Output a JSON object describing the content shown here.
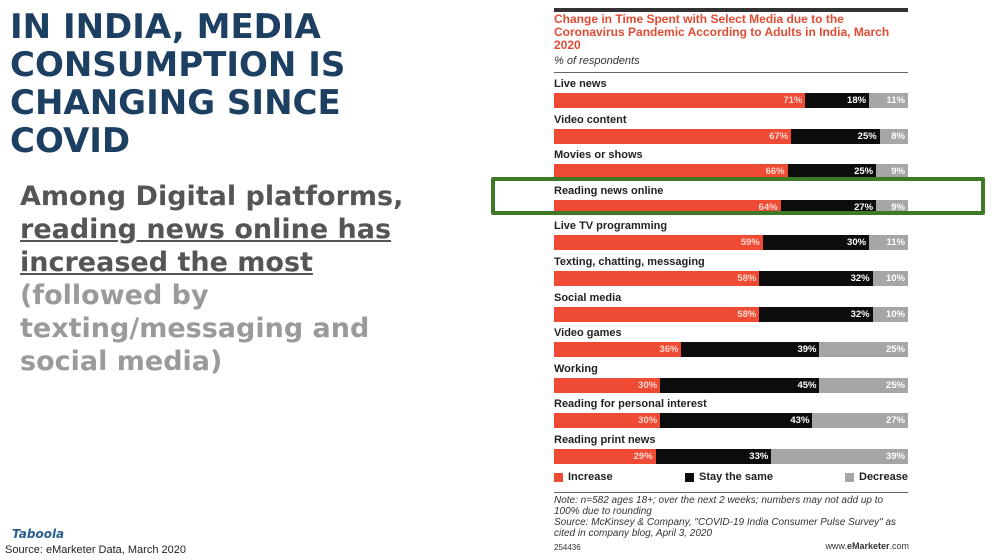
{
  "slide": {
    "headline": "IN INDIA, MEDIA CONSUMPTION IS CHANGING SINCE COVID",
    "sub_part1": "Among Digital platforms, ",
    "sub_highlight": "reading news online has increased the most",
    "sub_part3": "(followed by texting/messaging and social media)",
    "logo": "Taboola",
    "source": "Source: eMarketer Data, March 2020"
  },
  "colors": {
    "increase": "#ef4b34",
    "stay_the_same": "#0d0d0d",
    "decrease": "#a6a6a6",
    "highlight_border": "#3e7a26",
    "headline": "#1c3f62"
  },
  "chart_data": {
    "type": "bar",
    "orientation": "horizontal-stacked-100",
    "title": "Change in Time Spent with Select Media due to the Coronavirus Pandemic According to Adults in India, March 2020",
    "subtitle": "% of respondents",
    "categories": [
      "Live news",
      "Video content",
      "Movies or shows",
      "Reading news online",
      "Live TV programming",
      "Texting, chatting, messaging",
      "Social media",
      "Video games",
      "Working",
      "Reading for personal interest",
      "Reading print news"
    ],
    "series": [
      {
        "name": "Increase",
        "values": [
          71,
          67,
          66,
          64,
          59,
          58,
          58,
          36,
          30,
          30,
          29
        ]
      },
      {
        "name": "Stay the same",
        "values": [
          18,
          25,
          25,
          27,
          30,
          32,
          32,
          39,
          45,
          43,
          33
        ]
      },
      {
        "name": "Decrease",
        "values": [
          11,
          8,
          9,
          9,
          11,
          10,
          10,
          25,
          25,
          27,
          39
        ]
      }
    ],
    "highlighted_category": "Reading news online",
    "legend_position": "bottom",
    "note": "Note: n=582 ages 18+; over the next 2 weeks; numbers may not add up to 100% due to rounding",
    "source": "Source: McKinsey & Company, \"COVID-19 India Consumer Pulse Survey\" as cited in company blog, April 3, 2020",
    "chart_id": "254436",
    "brand_prefix": "www.",
    "brand_name": "eMarketer",
    "brand_suffix": ".com"
  }
}
